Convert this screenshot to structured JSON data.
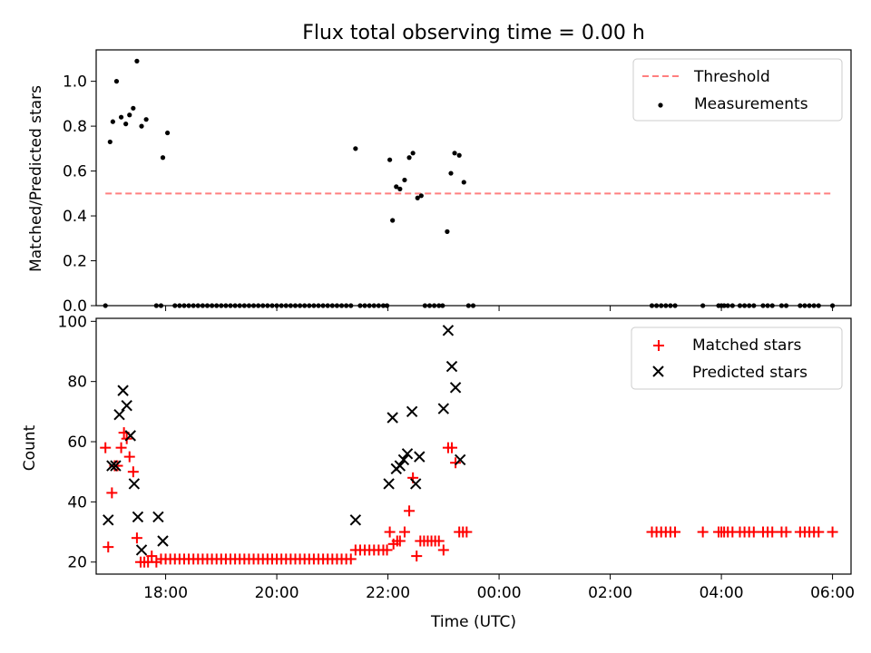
{
  "chart_data": [
    {
      "type": "scatter",
      "title": "Flux total observing time = 0.00 h",
      "ylabel": "Matched/Predicted stars",
      "xlabel": "",
      "xlim": [
        "16:45",
        "06:20"
      ],
      "ylim": [
        0,
        1.14
      ],
      "yticks": [
        {
          "v": 0,
          "label": "0.0"
        },
        {
          "v": 0.2,
          "label": "0.2"
        },
        {
          "v": 0.4,
          "label": "0.4"
        },
        {
          "v": 0.6,
          "label": "0.6"
        },
        {
          "v": 0.8,
          "label": "0.8"
        },
        {
          "v": 1.0,
          "label": "1.0"
        }
      ],
      "threshold": {
        "name": "Threshold",
        "y": 0.5,
        "x_start": "16:55",
        "x_end": "06:00",
        "color": "#ff7f7f"
      },
      "legend_position": "upper right",
      "series": [
        {
          "name": "Measurements",
          "color": "#000000",
          "marker": "dot",
          "points": [
            [
              "16:55",
              0.0
            ],
            [
              "17:00",
              0.73
            ],
            [
              "17:03",
              0.82
            ],
            [
              "17:07",
              1.0
            ],
            [
              "17:12",
              0.84
            ],
            [
              "17:17",
              0.81
            ],
            [
              "17:21",
              0.85
            ],
            [
              "17:25",
              0.88
            ],
            [
              "17:29",
              1.09
            ],
            [
              "17:34",
              0.8
            ],
            [
              "17:39",
              0.83
            ],
            [
              "17:50",
              0.0
            ],
            [
              "17:55",
              0.0
            ],
            [
              "17:57",
              0.66
            ],
            [
              "18:02",
              0.77
            ],
            [
              "18:10",
              0.0
            ],
            [
              "18:15",
              0.0
            ],
            [
              "18:20",
              0.0
            ],
            [
              "18:25",
              0.0
            ],
            [
              "18:30",
              0.0
            ],
            [
              "18:35",
              0.0
            ],
            [
              "18:40",
              0.0
            ],
            [
              "18:45",
              0.0
            ],
            [
              "18:50",
              0.0
            ],
            [
              "18:55",
              0.0
            ],
            [
              "19:00",
              0.0
            ],
            [
              "19:05",
              0.0
            ],
            [
              "19:10",
              0.0
            ],
            [
              "19:15",
              0.0
            ],
            [
              "19:20",
              0.0
            ],
            [
              "19:25",
              0.0
            ],
            [
              "19:30",
              0.0
            ],
            [
              "19:35",
              0.0
            ],
            [
              "19:40",
              0.0
            ],
            [
              "19:45",
              0.0
            ],
            [
              "19:50",
              0.0
            ],
            [
              "19:55",
              0.0
            ],
            [
              "20:00",
              0.0
            ],
            [
              "20:05",
              0.0
            ],
            [
              "20:10",
              0.0
            ],
            [
              "20:15",
              0.0
            ],
            [
              "20:20",
              0.0
            ],
            [
              "20:25",
              0.0
            ],
            [
              "20:30",
              0.0
            ],
            [
              "20:35",
              0.0
            ],
            [
              "20:40",
              0.0
            ],
            [
              "20:45",
              0.0
            ],
            [
              "20:50",
              0.0
            ],
            [
              "20:55",
              0.0
            ],
            [
              "21:00",
              0.0
            ],
            [
              "21:05",
              0.0
            ],
            [
              "21:10",
              0.0
            ],
            [
              "21:15",
              0.0
            ],
            [
              "21:20",
              0.0
            ],
            [
              "21:25",
              0.7
            ],
            [
              "21:30",
              0.0
            ],
            [
              "21:35",
              0.0
            ],
            [
              "21:40",
              0.0
            ],
            [
              "21:45",
              0.0
            ],
            [
              "21:50",
              0.0
            ],
            [
              "21:55",
              0.0
            ],
            [
              "21:59",
              0.0
            ],
            [
              "22:02",
              0.65
            ],
            [
              "22:05",
              0.38
            ],
            [
              "22:09",
              0.53
            ],
            [
              "22:13",
              0.52
            ],
            [
              "22:18",
              0.56
            ],
            [
              "22:23",
              0.66
            ],
            [
              "22:27",
              0.68
            ],
            [
              "22:32",
              0.48
            ],
            [
              "22:36",
              0.49
            ],
            [
              "22:40",
              0.0
            ],
            [
              "22:45",
              0.0
            ],
            [
              "22:50",
              0.0
            ],
            [
              "22:55",
              0.0
            ],
            [
              "22:59",
              0.0
            ],
            [
              "23:04",
              0.33
            ],
            [
              "23:08",
              0.59
            ],
            [
              "23:12",
              0.68
            ],
            [
              "23:17",
              0.67
            ],
            [
              "23:22",
              0.55
            ],
            [
              "23:27",
              0.0
            ],
            [
              "23:32",
              0.0
            ],
            [
              "02:45",
              0.0
            ],
            [
              "02:50",
              0.0
            ],
            [
              "02:55",
              0.0
            ],
            [
              "03:00",
              0.0
            ],
            [
              "03:05",
              0.0
            ],
            [
              "03:10",
              0.0
            ],
            [
              "03:40",
              0.0
            ],
            [
              "03:57",
              0.0
            ],
            [
              "04:00",
              0.0
            ],
            [
              "04:03",
              0.0
            ],
            [
              "04:07",
              0.0
            ],
            [
              "04:12",
              0.0
            ],
            [
              "04:20",
              0.0
            ],
            [
              "04:25",
              0.0
            ],
            [
              "04:30",
              0.0
            ],
            [
              "04:35",
              0.0
            ],
            [
              "04:45",
              0.0
            ],
            [
              "04:50",
              0.0
            ],
            [
              "04:55",
              0.0
            ],
            [
              "05:05",
              0.0
            ],
            [
              "05:10",
              0.0
            ],
            [
              "05:25",
              0.0
            ],
            [
              "05:30",
              0.0
            ],
            [
              "05:35",
              0.0
            ],
            [
              "05:40",
              0.0
            ],
            [
              "05:45",
              0.0
            ],
            [
              "06:00",
              0.0
            ]
          ]
        }
      ]
    },
    {
      "type": "scatter",
      "title": "",
      "ylabel": "Count",
      "xlabel": "Time (UTC)",
      "xlim": [
        "16:45",
        "06:20"
      ],
      "ylim": [
        16,
        101
      ],
      "yticks": [
        {
          "v": 20,
          "label": "20"
        },
        {
          "v": 40,
          "label": "40"
        },
        {
          "v": 60,
          "label": "60"
        },
        {
          "v": 80,
          "label": "80"
        },
        {
          "v": 100,
          "label": "100"
        }
      ],
      "xticks": [
        "18:00",
        "20:00",
        "22:00",
        "00:00",
        "02:00",
        "04:00",
        "06:00"
      ],
      "legend_position": "upper right",
      "series": [
        {
          "name": "Matched stars",
          "color": "#ff0000",
          "marker": "plus",
          "points": [
            [
              "16:55",
              58
            ],
            [
              "16:58",
              25
            ],
            [
              "17:02",
              43
            ],
            [
              "17:05",
              52
            ],
            [
              "17:08",
              52
            ],
            [
              "17:12",
              58
            ],
            [
              "17:15",
              63
            ],
            [
              "17:18",
              61
            ],
            [
              "17:21",
              55
            ],
            [
              "17:25",
              50
            ],
            [
              "17:29",
              28
            ],
            [
              "17:33",
              20
            ],
            [
              "17:37",
              20
            ],
            [
              "17:41",
              20
            ],
            [
              "17:45",
              22
            ],
            [
              "17:50",
              20
            ],
            [
              "17:55",
              21
            ],
            [
              "18:00",
              21
            ],
            [
              "18:05",
              21
            ],
            [
              "18:10",
              21
            ],
            [
              "18:15",
              21
            ],
            [
              "18:20",
              21
            ],
            [
              "18:25",
              21
            ],
            [
              "18:30",
              21
            ],
            [
              "18:35",
              21
            ],
            [
              "18:40",
              21
            ],
            [
              "18:45",
              21
            ],
            [
              "18:50",
              21
            ],
            [
              "18:55",
              21
            ],
            [
              "19:00",
              21
            ],
            [
              "19:05",
              21
            ],
            [
              "19:10",
              21
            ],
            [
              "19:15",
              21
            ],
            [
              "19:20",
              21
            ],
            [
              "19:25",
              21
            ],
            [
              "19:30",
              21
            ],
            [
              "19:35",
              21
            ],
            [
              "19:40",
              21
            ],
            [
              "19:45",
              21
            ],
            [
              "19:50",
              21
            ],
            [
              "19:55",
              21
            ],
            [
              "20:00",
              21
            ],
            [
              "20:05",
              21
            ],
            [
              "20:10",
              21
            ],
            [
              "20:15",
              21
            ],
            [
              "20:20",
              21
            ],
            [
              "20:25",
              21
            ],
            [
              "20:30",
              21
            ],
            [
              "20:35",
              21
            ],
            [
              "20:40",
              21
            ],
            [
              "20:45",
              21
            ],
            [
              "20:50",
              21
            ],
            [
              "20:55",
              21
            ],
            [
              "21:00",
              21
            ],
            [
              "21:05",
              21
            ],
            [
              "21:10",
              21
            ],
            [
              "21:15",
              21
            ],
            [
              "21:20",
              21
            ],
            [
              "21:25",
              24
            ],
            [
              "21:30",
              24
            ],
            [
              "21:35",
              24
            ],
            [
              "21:40",
              24
            ],
            [
              "21:45",
              24
            ],
            [
              "21:50",
              24
            ],
            [
              "21:55",
              24
            ],
            [
              "21:59",
              24
            ],
            [
              "22:02",
              30
            ],
            [
              "22:06",
              26
            ],
            [
              "22:10",
              27
            ],
            [
              "22:13",
              27
            ],
            [
              "22:18",
              30
            ],
            [
              "22:23",
              37
            ],
            [
              "22:27",
              48
            ],
            [
              "22:31",
              22
            ],
            [
              "22:35",
              27
            ],
            [
              "22:39",
              27
            ],
            [
              "22:43",
              27
            ],
            [
              "22:47",
              27
            ],
            [
              "22:51",
              27
            ],
            [
              "22:55",
              27
            ],
            [
              "23:00",
              24
            ],
            [
              "23:05",
              58
            ],
            [
              "23:09",
              58
            ],
            [
              "23:13",
              53
            ],
            [
              "23:17",
              30
            ],
            [
              "23:21",
              30
            ],
            [
              "23:25",
              30
            ],
            [
              "02:45",
              30
            ],
            [
              "02:50",
              30
            ],
            [
              "02:55",
              30
            ],
            [
              "03:00",
              30
            ],
            [
              "03:05",
              30
            ],
            [
              "03:10",
              30
            ],
            [
              "03:40",
              30
            ],
            [
              "03:57",
              30
            ],
            [
              "04:00",
              30
            ],
            [
              "04:03",
              30
            ],
            [
              "04:07",
              30
            ],
            [
              "04:12",
              30
            ],
            [
              "04:20",
              30
            ],
            [
              "04:25",
              30
            ],
            [
              "04:30",
              30
            ],
            [
              "04:35",
              30
            ],
            [
              "04:45",
              30
            ],
            [
              "04:50",
              30
            ],
            [
              "04:55",
              30
            ],
            [
              "05:05",
              30
            ],
            [
              "05:10",
              30
            ],
            [
              "05:25",
              30
            ],
            [
              "05:30",
              30
            ],
            [
              "05:35",
              30
            ],
            [
              "05:40",
              30
            ],
            [
              "05:45",
              30
            ],
            [
              "06:00",
              30
            ]
          ]
        },
        {
          "name": "Predicted stars",
          "color": "#000000",
          "marker": "x",
          "points": [
            [
              "16:58",
              34
            ],
            [
              "17:02",
              52
            ],
            [
              "17:06",
              52
            ],
            [
              "17:10",
              69
            ],
            [
              "17:14",
              77
            ],
            [
              "17:18",
              72
            ],
            [
              "17:22",
              62
            ],
            [
              "17:26",
              46
            ],
            [
              "17:30",
              35
            ],
            [
              "17:34",
              24
            ],
            [
              "17:52",
              35
            ],
            [
              "17:57",
              27
            ],
            [
              "21:25",
              34
            ],
            [
              "22:01",
              46
            ],
            [
              "22:05",
              68
            ],
            [
              "22:09",
              51
            ],
            [
              "22:13",
              52
            ],
            [
              "22:17",
              54
            ],
            [
              "22:21",
              56
            ],
            [
              "22:26",
              70
            ],
            [
              "22:30",
              46
            ],
            [
              "22:34",
              55
            ],
            [
              "23:00",
              71
            ],
            [
              "23:05",
              97
            ],
            [
              "23:09",
              85
            ],
            [
              "23:13",
              78
            ],
            [
              "23:18",
              54
            ]
          ]
        }
      ]
    }
  ]
}
